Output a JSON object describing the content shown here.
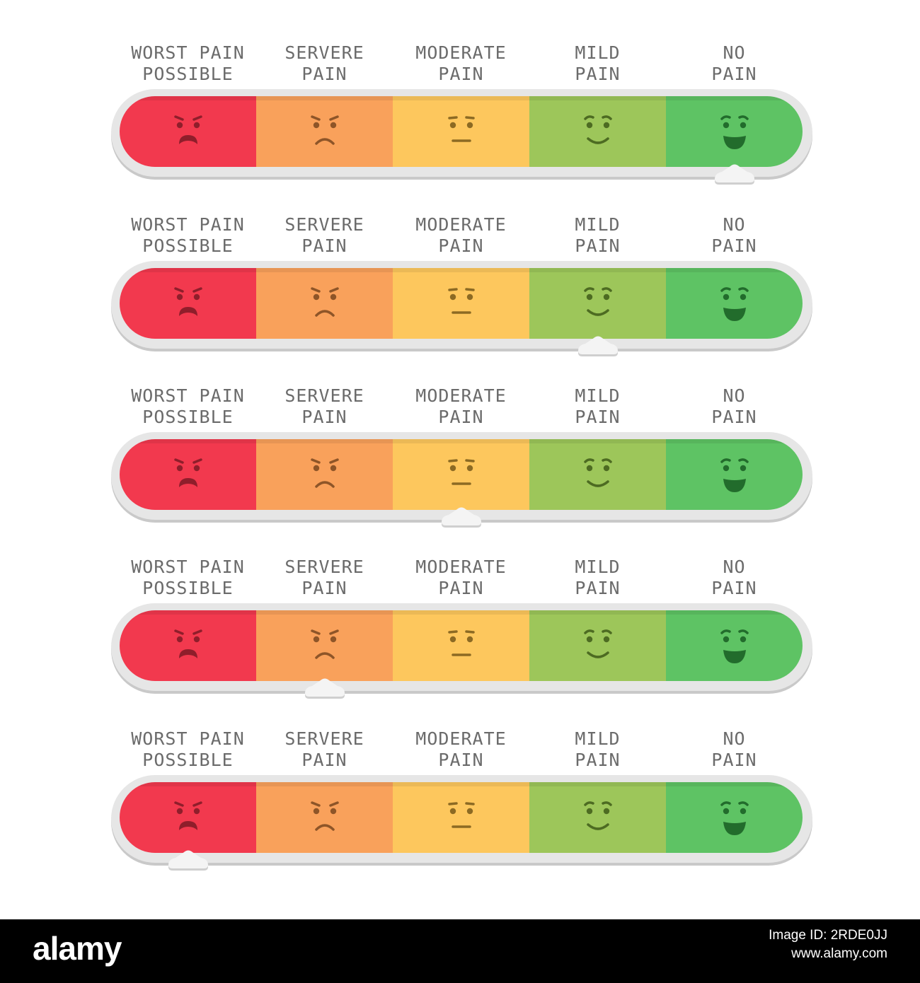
{
  "levels": [
    {
      "key": "worst",
      "label": "WORST PAIN\nPOSSIBLE",
      "color": "#f2394e",
      "face_color": "#8f1e2b",
      "mouth": "frown-strong",
      "brows": "angry"
    },
    {
      "key": "severe",
      "label": "SERVERE\nPAIN",
      "color": "#f9a15b",
      "face_color": "#8e5528",
      "mouth": "frown",
      "brows": "angry"
    },
    {
      "key": "moderate",
      "label": "MODERATE\nPAIN",
      "color": "#fdc75d",
      "face_color": "#8c6a23",
      "mouth": "flat",
      "brows": "flat"
    },
    {
      "key": "mild",
      "label": "MILD\nPAIN",
      "color": "#9dc65a",
      "face_color": "#4d6b22",
      "mouth": "smile",
      "brows": "raised"
    },
    {
      "key": "none",
      "label": "NO\nPAIN",
      "color": "#5ec364",
      "face_color": "#226c2c",
      "mouth": "grin",
      "brows": "raised"
    }
  ],
  "scales": [
    {
      "selected_index": 4
    },
    {
      "selected_index": 3
    },
    {
      "selected_index": 2
    },
    {
      "selected_index": 1
    },
    {
      "selected_index": 0
    }
  ],
  "footer": {
    "logo": "alamy",
    "image_id": "Image ID: 2RDE0JJ",
    "site": "www.alamy.com"
  }
}
